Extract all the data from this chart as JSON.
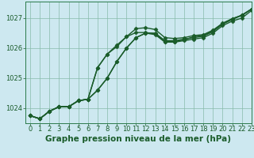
{
  "title": "Graphe pression niveau de la mer (hPa)",
  "bg_color": "#cde8f0",
  "line_color": "#1a5c2a",
  "grid_color": "#88bbaa",
  "xlim": [
    -0.5,
    23
  ],
  "ylim": [
    1023.5,
    1027.55
  ],
  "yticks": [
    1024,
    1025,
    1026,
    1027
  ],
  "xticks": [
    0,
    1,
    2,
    3,
    4,
    5,
    6,
    7,
    8,
    9,
    10,
    11,
    12,
    13,
    14,
    15,
    16,
    17,
    18,
    19,
    20,
    21,
    22,
    23
  ],
  "series": [
    [
      1023.75,
      1023.65,
      1023.9,
      1024.05,
      1024.05,
      1024.25,
      1024.3,
      1024.6,
      1025.0,
      1025.55,
      1026.0,
      1026.35,
      1026.5,
      1026.45,
      1026.2,
      1026.2,
      1026.25,
      1026.3,
      1026.35,
      1026.5,
      1026.75,
      1026.9,
      1027.0,
      1027.25
    ],
    [
      1023.75,
      1023.65,
      1023.9,
      1024.05,
      1024.05,
      1024.25,
      1024.3,
      1024.6,
      1025.0,
      1025.55,
      1026.0,
      1026.35,
      1026.5,
      1026.5,
      1026.25,
      1026.25,
      1026.3,
      1026.35,
      1026.4,
      1026.55,
      1026.8,
      1026.95,
      1027.1,
      1027.3
    ],
    [
      1023.75,
      1023.65,
      1023.9,
      1024.05,
      1024.05,
      1024.25,
      1024.3,
      1025.35,
      1025.8,
      1026.1,
      1026.38,
      1026.52,
      1026.52,
      1026.48,
      1026.22,
      1026.22,
      1026.28,
      1026.38,
      1026.42,
      1026.58,
      1026.82,
      1026.98,
      1027.08,
      1027.3
    ],
    [
      1023.75,
      1023.65,
      1023.9,
      1024.05,
      1024.05,
      1024.25,
      1024.3,
      1025.35,
      1025.8,
      1026.05,
      1026.38,
      1026.65,
      1026.68,
      1026.62,
      1026.35,
      1026.32,
      1026.35,
      1026.42,
      1026.45,
      1026.6,
      1026.83,
      1026.98,
      1027.1,
      1027.3
    ]
  ],
  "marker": "D",
  "marker_size": 2.5,
  "linewidth": 1.0,
  "title_fontsize": 7.5,
  "tick_fontsize": 6.0,
  "title_color": "#1a5c2a",
  "tick_color": "#1a5c2a",
  "spine_color": "#2a7a4a"
}
